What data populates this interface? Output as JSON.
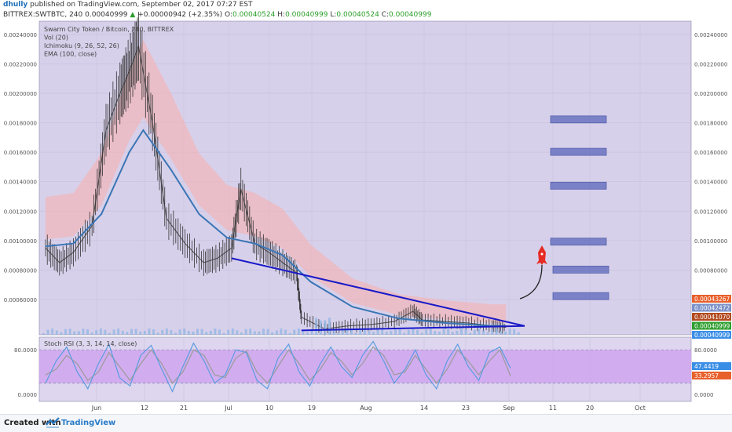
{
  "header": {
    "user": "dhully",
    "published": "published on TradingView.com, September 02, 2017 07:27 EST",
    "symbol": "BITTREX:SWTBTC, 240",
    "last": "0.00040999",
    "change": "+0.00000942 (+2.35%)",
    "open_label": "O:",
    "open": "0.00040524",
    "high_label": "H:",
    "high": "0.00040999",
    "low_label": "L:",
    "low": "0.00040524",
    "close_label": "C:",
    "close": "0.00040999"
  },
  "legend": [
    "Swarm City Token / Bitcoin, 240, BITTREX",
    "Vol (20)",
    "Ichimoku (9, 26, 52, 26)",
    "EMA (100, close)"
  ],
  "rsi_legend": "Stoch RSI (3, 3, 14, 14, close)",
  "footer": {
    "created_with": "Created with",
    "brand": "TradingView"
  },
  "colors": {
    "panel_bg": "#d7d0ea",
    "grid": "#c9c1e0",
    "ema": "#3a75b5",
    "cloud": "#f3b3b6",
    "trendline": "#1919c8",
    "target_box": "#7079c4",
    "rocket": "#e62b24",
    "rsi_band": "#cfa6ef",
    "rsi_k": "#5b9ce0",
    "rsi_d": "#9a9a9a"
  },
  "chart_data": {
    "type": "line",
    "title": "Swarm City Token / Bitcoin, 240, BITTREX",
    "x_ticks": [
      "Jun",
      "12",
      "21",
      "Jul",
      "10",
      "19",
      "Aug",
      "14",
      "23",
      "Sep",
      "11",
      "20",
      "Oct"
    ],
    "y_ticks": [
      "0.00240000",
      "0.00220000",
      "0.00200000",
      "0.00180000",
      "0.00160000",
      "0.00140000",
      "0.00120000",
      "0.00100000",
      "0.00080000",
      "0.00060000"
    ],
    "ylim": [
      0.00036,
      0.00249
    ],
    "price_labels": [
      {
        "value": "0.00043267",
        "color": "#e8602c"
      },
      {
        "value": "0.00042472",
        "color": "#7b91c9"
      },
      {
        "value": "0.00041070",
        "color": "#b24a1e"
      },
      {
        "value": "0.00040999",
        "color": "#2f9e2f"
      },
      {
        "value": "0.00040999",
        "color": "#3a8ee6"
      }
    ],
    "price_series": {
      "x": [
        "May 26",
        "May 29",
        "Jun 1",
        "Jun 5",
        "Jun 8",
        "Jun 11",
        "Jun 13",
        "Jun 15",
        "Jun 18",
        "Jun 21",
        "Jun 25",
        "Jun 29",
        "Jul 2",
        "Jul 5",
        "Jul 7",
        "Jul 10",
        "Jul 13",
        "Jul 16",
        "Jul 19",
        "Jul 20",
        "Jul 25",
        "Jul 30",
        "Aug 4",
        "Aug 9",
        "Aug 13",
        "Aug 15",
        "Aug 20",
        "Aug 25",
        "Aug 30",
        "Sep 2"
      ],
      "y": [
        0.00095,
        0.00085,
        0.00092,
        0.0011,
        0.00175,
        0.002,
        0.00215,
        0.00232,
        0.0018,
        0.00115,
        0.00098,
        0.00085,
        0.00088,
        0.00095,
        0.00135,
        0.00098,
        0.00092,
        0.00085,
        0.00078,
        0.00048,
        0.0004,
        0.00042,
        0.00043,
        0.00045,
        0.00052,
        0.00046,
        0.00045,
        0.00044,
        0.00042,
        0.00041
      ]
    },
    "ema_series": {
      "x": [
        "May 26",
        "Jun 1",
        "Jun 7",
        "Jun 13",
        "Jun 16",
        "Jun 22",
        "Jun 28",
        "Jul 4",
        "Jul 10",
        "Jul 16",
        "Jul 22",
        "Jul 31",
        "Aug 10",
        "Aug 20",
        "Aug 30",
        "Sep 2"
      ],
      "y": [
        0.00096,
        0.00098,
        0.00118,
        0.0016,
        0.00175,
        0.00148,
        0.00118,
        0.00102,
        0.00098,
        0.0009,
        0.00072,
        0.00055,
        0.00047,
        0.00044,
        0.00042,
        0.00042
      ]
    },
    "triangle_upper": {
      "x": [
        "Jul 5",
        "Sep 6"
      ],
      "y": [
        0.00088,
        0.00042
      ]
    },
    "triangle_lower": {
      "x": [
        "Jul 20",
        "Sep 6"
      ],
      "y": [
        0.00039,
        0.00042
      ]
    },
    "target_levels": [
      0.00182,
      0.0016,
      0.00137,
      0.00099,
      0.0008,
      0.00062
    ],
    "rsi": {
      "title": "Stoch RSI (3, 3, 14, 14, close)",
      "y_ticks": [
        "80.0000",
        "0.0000"
      ],
      "ylim": [
        -10,
        100
      ],
      "labels": [
        {
          "value": "47.4419",
          "color": "#3a8ee6"
        },
        {
          "value": "33.2957",
          "color": "#e8602c"
        }
      ],
      "k": [
        20,
        60,
        85,
        40,
        10,
        55,
        90,
        30,
        15,
        70,
        88,
        45,
        5,
        50,
        92,
        60,
        20,
        35,
        80,
        75,
        25,
        10,
        65,
        90,
        40,
        15,
        55,
        85,
        50,
        30,
        70,
        95,
        60,
        20,
        45,
        80,
        35,
        10,
        60,
        90,
        50,
        25,
        75,
        85,
        47
      ],
      "d": [
        35,
        45,
        70,
        55,
        25,
        40,
        75,
        50,
        25,
        55,
        80,
        55,
        20,
        40,
        80,
        70,
        35,
        30,
        65,
        78,
        40,
        20,
        50,
        80,
        55,
        25,
        45,
        75,
        60,
        35,
        55,
        85,
        70,
        35,
        40,
        70,
        45,
        20,
        45,
        80,
        60,
        35,
        60,
        80,
        33
      ]
    }
  }
}
